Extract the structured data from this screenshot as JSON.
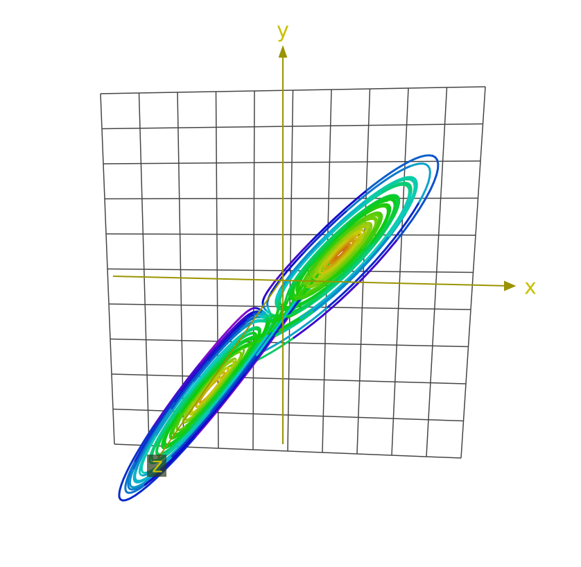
{
  "axes": {
    "x": "x",
    "y": "y",
    "z": "z"
  }
}
